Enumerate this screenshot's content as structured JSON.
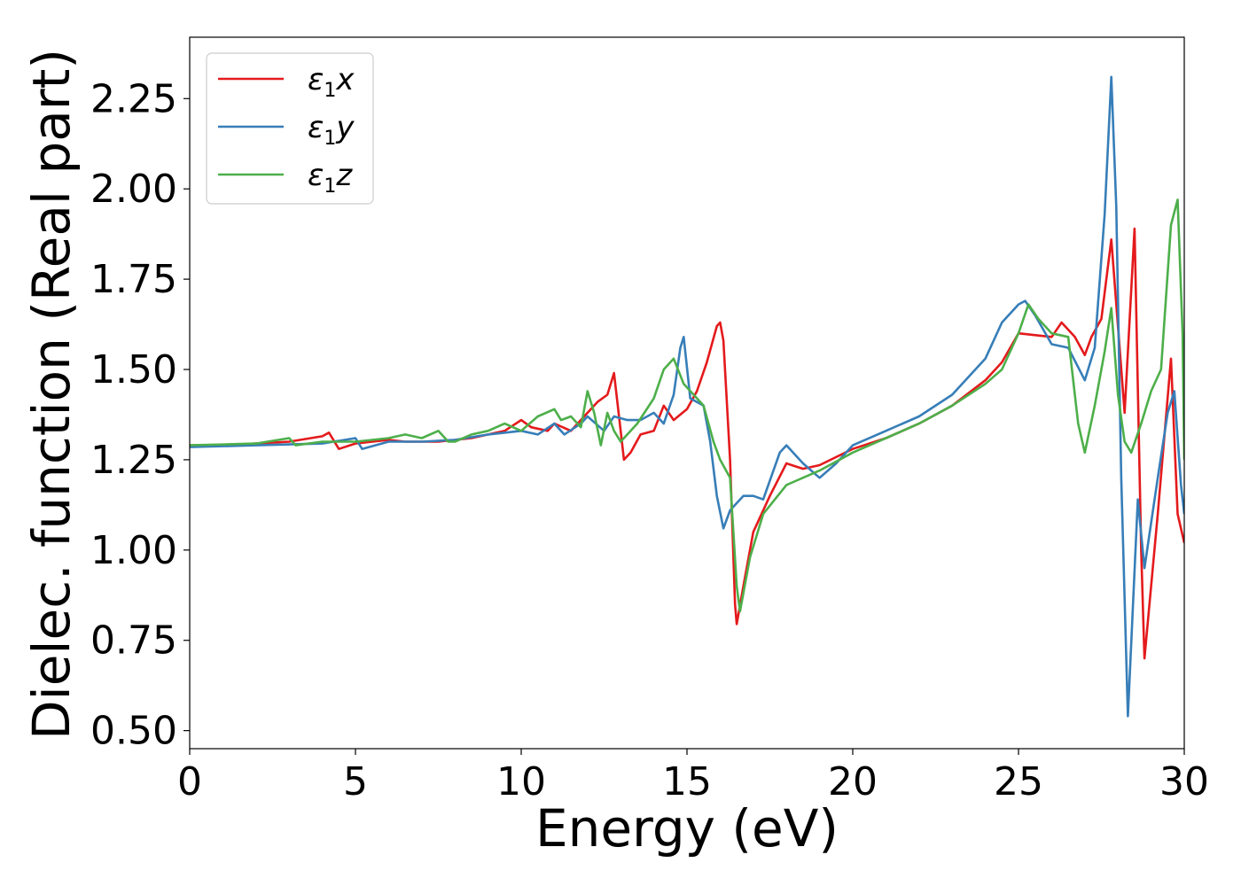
{
  "chart_data": {
    "type": "line",
    "xlabel": "Energy (eV)",
    "ylabel": "Dielec. function (Real part)",
    "xlim": [
      0,
      30
    ],
    "ylim": [
      0.45,
      2.42
    ],
    "xticks": [
      0,
      5,
      10,
      15,
      20,
      25,
      30
    ],
    "xtick_labels": [
      "0",
      "5",
      "10",
      "15",
      "20",
      "25",
      "30"
    ],
    "yticks": [
      0.5,
      0.75,
      1.0,
      1.25,
      1.5,
      1.75,
      2.0,
      2.25
    ],
    "ytick_labels": [
      "0.50",
      "0.75",
      "1.00",
      "1.25",
      "1.50",
      "1.75",
      "2.00",
      "2.25"
    ],
    "grid": false,
    "legend_position": "top-left",
    "series": [
      {
        "name": "ε1x",
        "legend_main": "ε",
        "legend_sub": "1",
        "legend_tail": "x",
        "color": "#e41a1c",
        "points": [
          [
            0,
            1.29
          ],
          [
            1,
            1.29
          ],
          [
            2,
            1.295
          ],
          [
            3,
            1.3
          ],
          [
            4,
            1.315
          ],
          [
            4.2,
            1.325
          ],
          [
            4.5,
            1.28
          ],
          [
            5,
            1.295
          ],
          [
            6,
            1.305
          ],
          [
            6.5,
            1.3
          ],
          [
            7,
            1.3
          ],
          [
            7.5,
            1.3
          ],
          [
            8,
            1.305
          ],
          [
            8.5,
            1.31
          ],
          [
            9,
            1.32
          ],
          [
            9.5,
            1.33
          ],
          [
            10,
            1.36
          ],
          [
            10.3,
            1.34
          ],
          [
            10.8,
            1.33
          ],
          [
            11,
            1.35
          ],
          [
            11.5,
            1.33
          ],
          [
            12,
            1.38
          ],
          [
            12.3,
            1.41
          ],
          [
            12.6,
            1.43
          ],
          [
            12.8,
            1.49
          ],
          [
            13,
            1.33
          ],
          [
            13.1,
            1.25
          ],
          [
            13.3,
            1.27
          ],
          [
            13.6,
            1.32
          ],
          [
            14,
            1.33
          ],
          [
            14.3,
            1.4
          ],
          [
            14.6,
            1.36
          ],
          [
            15,
            1.39
          ],
          [
            15.3,
            1.44
          ],
          [
            15.6,
            1.52
          ],
          [
            15.9,
            1.62
          ],
          [
            16,
            1.63
          ],
          [
            16.1,
            1.58
          ],
          [
            16.3,
            1.25
          ],
          [
            16.45,
            0.85
          ],
          [
            16.5,
            0.795
          ],
          [
            16.7,
            0.9
          ],
          [
            17,
            1.05
          ],
          [
            17.5,
            1.15
          ],
          [
            18,
            1.24
          ],
          [
            18.5,
            1.225
          ],
          [
            19,
            1.235
          ],
          [
            20,
            1.28
          ],
          [
            21,
            1.31
          ],
          [
            22,
            1.35
          ],
          [
            23,
            1.4
          ],
          [
            24,
            1.47
          ],
          [
            24.5,
            1.52
          ],
          [
            25,
            1.6
          ],
          [
            26,
            1.59
          ],
          [
            26.3,
            1.63
          ],
          [
            26.7,
            1.59
          ],
          [
            27,
            1.54
          ],
          [
            27.2,
            1.59
          ],
          [
            27.5,
            1.64
          ],
          [
            27.8,
            1.86
          ],
          [
            28,
            1.62
          ],
          [
            28.2,
            1.38
          ],
          [
            28.5,
            1.89
          ],
          [
            28.7,
            1.0
          ],
          [
            28.8,
            0.7
          ],
          [
            29.2,
            1.1
          ],
          [
            29.6,
            1.53
          ],
          [
            29.8,
            1.1
          ],
          [
            30,
            1.02
          ]
        ]
      },
      {
        "name": "ε1y",
        "legend_main": "ε",
        "legend_sub": "1",
        "legend_tail": "y",
        "color": "#377eb8",
        "points": [
          [
            0,
            1.285
          ],
          [
            2,
            1.29
          ],
          [
            4,
            1.295
          ],
          [
            5,
            1.31
          ],
          [
            5.2,
            1.28
          ],
          [
            6,
            1.3
          ],
          [
            7,
            1.3
          ],
          [
            8,
            1.305
          ],
          [
            9,
            1.32
          ],
          [
            10,
            1.33
          ],
          [
            10.5,
            1.32
          ],
          [
            11,
            1.35
          ],
          [
            11.3,
            1.32
          ],
          [
            11.8,
            1.35
          ],
          [
            12,
            1.37
          ],
          [
            12.5,
            1.33
          ],
          [
            12.8,
            1.37
          ],
          [
            13.2,
            1.36
          ],
          [
            13.6,
            1.36
          ],
          [
            14,
            1.38
          ],
          [
            14.3,
            1.35
          ],
          [
            14.6,
            1.43
          ],
          [
            14.8,
            1.56
          ],
          [
            14.9,
            1.59
          ],
          [
            15.1,
            1.42
          ],
          [
            15.5,
            1.4
          ],
          [
            15.7,
            1.3
          ],
          [
            15.9,
            1.15
          ],
          [
            16.1,
            1.06
          ],
          [
            16.3,
            1.11
          ],
          [
            16.7,
            1.15
          ],
          [
            17,
            1.15
          ],
          [
            17.3,
            1.14
          ],
          [
            17.8,
            1.27
          ],
          [
            18,
            1.29
          ],
          [
            18.5,
            1.24
          ],
          [
            19,
            1.2
          ],
          [
            19.5,
            1.24
          ],
          [
            20,
            1.29
          ],
          [
            21,
            1.33
          ],
          [
            22,
            1.37
          ],
          [
            23,
            1.43
          ],
          [
            24,
            1.53
          ],
          [
            24.5,
            1.63
          ],
          [
            24.8,
            1.66
          ],
          [
            25,
            1.68
          ],
          [
            25.2,
            1.69
          ],
          [
            25.5,
            1.65
          ],
          [
            26,
            1.57
          ],
          [
            26.5,
            1.56
          ],
          [
            27,
            1.47
          ],
          [
            27.3,
            1.56
          ],
          [
            27.6,
            1.93
          ],
          [
            27.8,
            2.31
          ],
          [
            27.95,
            1.95
          ],
          [
            28.1,
            1.2
          ],
          [
            28.3,
            0.54
          ],
          [
            28.6,
            1.14
          ],
          [
            28.8,
            0.95
          ],
          [
            29.2,
            1.2
          ],
          [
            29.5,
            1.38
          ],
          [
            29.7,
            1.44
          ],
          [
            29.9,
            1.18
          ],
          [
            30,
            1.1
          ]
        ]
      },
      {
        "name": "ε1z",
        "legend_main": "ε",
        "legend_sub": "1",
        "legend_tail": "z",
        "color": "#4daf4a",
        "points": [
          [
            0,
            1.29
          ],
          [
            2,
            1.295
          ],
          [
            3,
            1.31
          ],
          [
            3.2,
            1.29
          ],
          [
            4,
            1.3
          ],
          [
            5,
            1.3
          ],
          [
            6,
            1.31
          ],
          [
            6.5,
            1.32
          ],
          [
            7,
            1.31
          ],
          [
            7.5,
            1.33
          ],
          [
            7.8,
            1.3
          ],
          [
            8,
            1.3
          ],
          [
            8.5,
            1.32
          ],
          [
            9,
            1.33
          ],
          [
            9.5,
            1.35
          ],
          [
            10,
            1.33
          ],
          [
            10.5,
            1.37
          ],
          [
            11,
            1.39
          ],
          [
            11.2,
            1.36
          ],
          [
            11.5,
            1.37
          ],
          [
            11.8,
            1.34
          ],
          [
            12,
            1.44
          ],
          [
            12.2,
            1.38
          ],
          [
            12.4,
            1.29
          ],
          [
            12.6,
            1.38
          ],
          [
            12.8,
            1.33
          ],
          [
            13,
            1.3
          ],
          [
            13.5,
            1.35
          ],
          [
            14,
            1.42
          ],
          [
            14.3,
            1.5
          ],
          [
            14.6,
            1.53
          ],
          [
            14.9,
            1.46
          ],
          [
            15.2,
            1.43
          ],
          [
            15.5,
            1.4
          ],
          [
            15.8,
            1.3
          ],
          [
            16,
            1.25
          ],
          [
            16.3,
            1.2
          ],
          [
            16.5,
            0.9
          ],
          [
            16.6,
            0.83
          ],
          [
            16.9,
            0.98
          ],
          [
            17.3,
            1.1
          ],
          [
            18,
            1.18
          ],
          [
            19,
            1.22
          ],
          [
            20,
            1.27
          ],
          [
            21,
            1.31
          ],
          [
            22,
            1.35
          ],
          [
            23,
            1.4
          ],
          [
            24,
            1.46
          ],
          [
            24.5,
            1.5
          ],
          [
            25,
            1.6
          ],
          [
            25.3,
            1.68
          ],
          [
            25.6,
            1.64
          ],
          [
            26,
            1.6
          ],
          [
            26.5,
            1.59
          ],
          [
            26.8,
            1.35
          ],
          [
            27,
            1.27
          ],
          [
            27.3,
            1.4
          ],
          [
            27.6,
            1.55
          ],
          [
            27.8,
            1.67
          ],
          [
            28,
            1.43
          ],
          [
            28.2,
            1.3
          ],
          [
            28.4,
            1.27
          ],
          [
            28.7,
            1.35
          ],
          [
            29,
            1.44
          ],
          [
            29.3,
            1.5
          ],
          [
            29.6,
            1.9
          ],
          [
            29.8,
            1.97
          ],
          [
            29.95,
            1.6
          ],
          [
            30,
            1.25
          ]
        ]
      }
    ]
  }
}
